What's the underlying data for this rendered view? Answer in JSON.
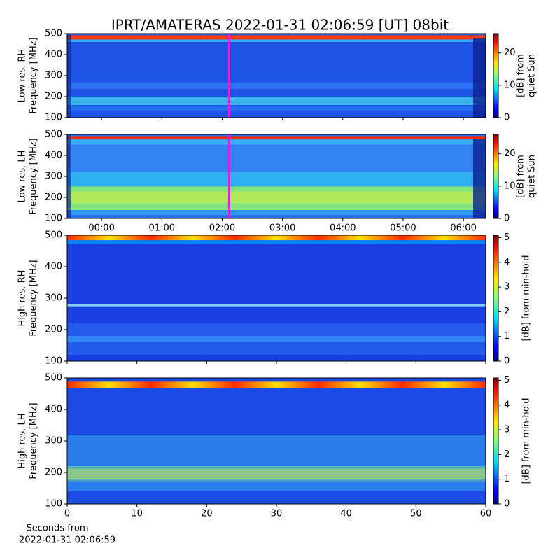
{
  "title": "IPRT/AMATERAS 2022-01-31 02:06:59 [UT]   08bit",
  "xlabel": [
    "Seconds from",
    "2022-01-31 02:06:59"
  ],
  "chart_data": [
    {
      "type": "heatmap",
      "ylabel": [
        "Low res. RH",
        "Frequency [MHz]"
      ],
      "ylim": [
        100,
        500
      ],
      "yticks": [
        100,
        200,
        300,
        400,
        500
      ],
      "xlim": [
        -0.57,
        6.37
      ],
      "xticks": [
        0,
        1,
        2,
        3,
        4,
        5,
        6
      ],
      "xticklabels": false,
      "marker_x": 2.116,
      "marker_color": "#e020e0",
      "clabel": [
        "[dB] from",
        "quiet Sun"
      ],
      "clim": [
        0,
        26
      ],
      "cticks": [
        0,
        10,
        20
      ]
    },
    {
      "type": "heatmap",
      "ylabel": [
        "Low res. LH",
        "Frequency [MHz]"
      ],
      "ylim": [
        100,
        500
      ],
      "yticks": [
        100,
        200,
        300,
        400,
        500
      ],
      "xlim": [
        -0.57,
        6.37
      ],
      "xticks": [
        {
          "value": 0,
          "label": "00:00"
        },
        {
          "value": 1,
          "label": "01:00"
        },
        {
          "value": 2,
          "label": "02:00"
        },
        {
          "value": 3,
          "label": "03:00"
        },
        {
          "value": 4,
          "label": "04:00"
        },
        {
          "value": 5,
          "label": "05:00"
        },
        {
          "value": 6,
          "label": "06:00"
        }
      ],
      "xticklabels": true,
      "marker_x": 2.116,
      "marker_color": "#e020e0",
      "clabel": [
        "[dB] from",
        "quiet Sun"
      ],
      "clim": [
        0,
        26
      ],
      "cticks": [
        0,
        10,
        20
      ]
    },
    {
      "type": "heatmap",
      "ylabel": [
        "High res. RH",
        "Frequency [MHz]"
      ],
      "ylim": [
        100,
        500
      ],
      "yticks": [
        100,
        200,
        300,
        400,
        500
      ],
      "xlim": [
        0,
        60
      ],
      "xticks": [
        0,
        10,
        20,
        30,
        40,
        50,
        60
      ],
      "xticklabels": false,
      "clabel": [
        "[dB] from min-hold"
      ],
      "clim": [
        0,
        5.1
      ],
      "cticks": [
        0,
        1,
        2,
        3,
        4,
        5
      ]
    },
    {
      "type": "heatmap",
      "ylabel": [
        "High res. LH",
        "Frequency [MHz]"
      ],
      "ylim": [
        100,
        500
      ],
      "yticks": [
        100,
        200,
        300,
        400,
        500
      ],
      "xlim": [
        0,
        60
      ],
      "xticks": [
        0,
        10,
        20,
        30,
        40,
        50,
        60
      ],
      "xticklabels": true,
      "clabel": [
        "[dB] from min-hold"
      ],
      "clim": [
        0,
        5.1
      ],
      "cticks": [
        0,
        1,
        2,
        3,
        4,
        5
      ]
    }
  ]
}
